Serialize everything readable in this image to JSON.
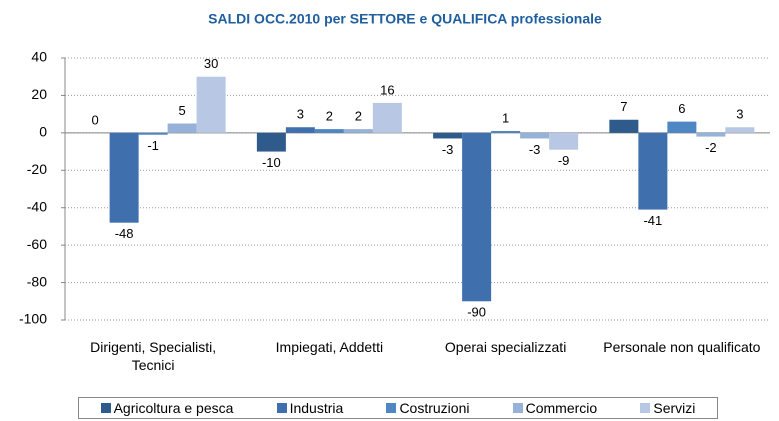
{
  "chart_data": {
    "type": "bar",
    "title": "SALDI OCC.2010 per SETTORE e QUALIFICA professionale",
    "categories": [
      "Dirigenti, Specialisti, Tecnici",
      "Impiegati, Addetti",
      "Operai specializzati",
      "Personale non qualificato"
    ],
    "series": [
      {
        "name": "Agricoltura e pesca",
        "color": "#2f5b8c",
        "values": [
          0,
          -10,
          -3,
          7
        ]
      },
      {
        "name": "Industria",
        "color": "#3f6fad",
        "values": [
          -48,
          3,
          -90,
          -41
        ]
      },
      {
        "name": "Costruzioni",
        "color": "#4f86c4",
        "values": [
          -1,
          2,
          1,
          6
        ]
      },
      {
        "name": "Commercio",
        "color": "#97b2d8",
        "values": [
          5,
          2,
          -3,
          -2
        ]
      },
      {
        "name": "Servizi",
        "color": "#b8c8e4",
        "values": [
          30,
          16,
          -9,
          3
        ]
      }
    ],
    "ylim": [
      -100,
      40
    ],
    "yticks": [
      -100,
      -80,
      -60,
      -40,
      -20,
      0,
      20,
      40
    ],
    "grid": true,
    "legend": "bottom"
  }
}
